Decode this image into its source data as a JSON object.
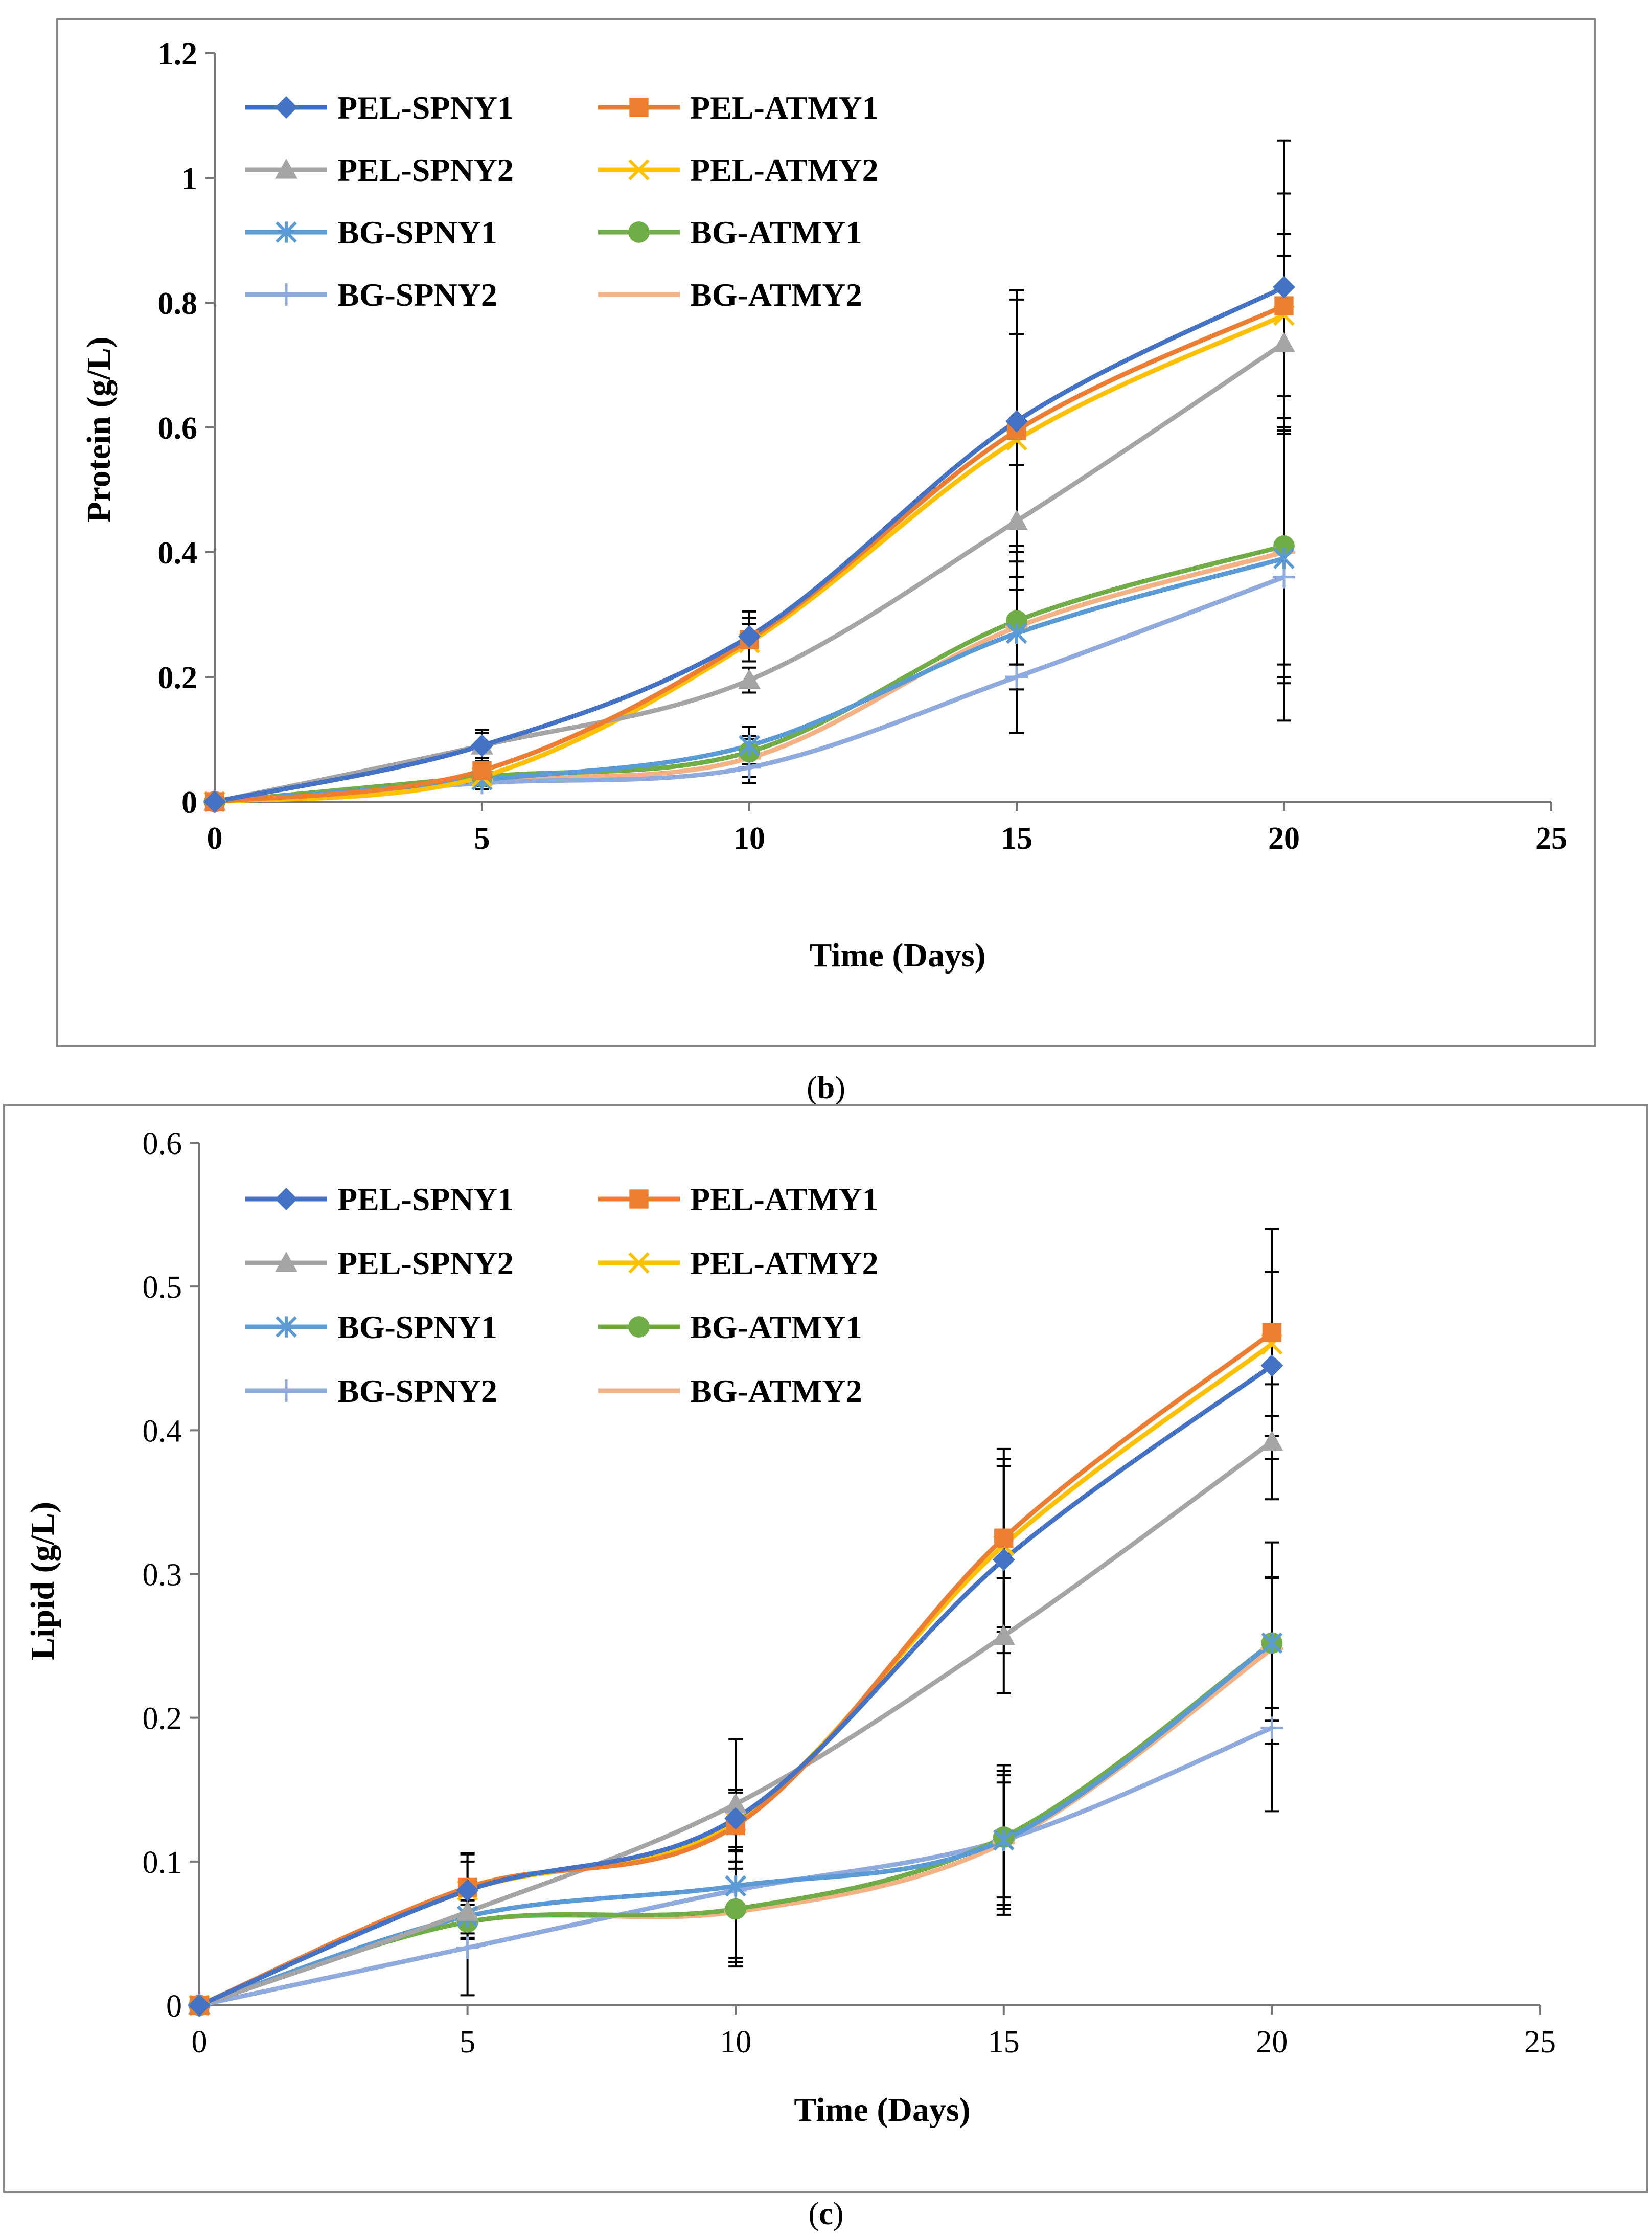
{
  "chart_data": [
    {
      "type": "line",
      "panel": "b",
      "caption_open": "(",
      "caption_letter": "b",
      "caption_close": ")",
      "title": "",
      "xlabel": "Time (Days)",
      "ylabel": "Protein (g/L)",
      "xlim": [
        0,
        25
      ],
      "ylim": [
        0,
        1.2
      ],
      "xticks": [
        0,
        5,
        10,
        15,
        20,
        25
      ],
      "yticks": [
        0,
        0.2,
        0.4,
        0.6,
        0.8,
        1.0,
        1.2
      ],
      "ytick_labels": [
        "0",
        "0.2",
        "0.4",
        "0.6",
        "0.8",
        "1",
        "1.2"
      ],
      "ytick_bold": true,
      "xtick_bold": true,
      "grid": false,
      "legend_position": "top-left",
      "x": [
        0,
        5,
        10,
        15,
        20
      ],
      "series": [
        {
          "name": "PEL-SPNY1",
          "color": "#4472c4",
          "marker": "diamond",
          "values": [
            0,
            0.09,
            0.265,
            0.61,
            0.825
          ],
          "errors": [
            0,
            0.02,
            0.04,
            0.21,
            0.235
          ]
        },
        {
          "name": "PEL-ATMY1",
          "color": "#ed7d31",
          "marker": "square",
          "values": [
            0,
            0.05,
            0.26,
            0.595,
            0.795
          ],
          "errors": [
            0,
            0.015,
            0.035,
            0.21,
            0.18
          ]
        },
        {
          "name": "PEL-SPNY2",
          "color": "#a5a5a5",
          "marker": "triangle",
          "values": [
            0,
            0.09,
            0.195,
            0.45,
            0.735
          ],
          "errors": [
            0,
            0.025,
            0.02,
            0.09,
            0.14
          ]
        },
        {
          "name": "PEL-ATMY2",
          "color": "#ffc000",
          "marker": "x",
          "values": [
            0,
            0.04,
            0.255,
            0.58,
            0.78
          ],
          "errors": [
            0,
            0.015,
            0.03,
            0.17,
            0.13
          ]
        },
        {
          "name": "BG-SPNY1",
          "color": "#5b9bd5",
          "marker": "star",
          "values": [
            0,
            0.035,
            0.09,
            0.27,
            0.39
          ],
          "errors": [
            0,
            0.01,
            0.03,
            0.09,
            0.2
          ]
        },
        {
          "name": "BG-ATMY1",
          "color": "#70ad47",
          "marker": "circle",
          "values": [
            0,
            0.04,
            0.08,
            0.29,
            0.41
          ],
          "errors": [
            0,
            0.01,
            0.025,
            0.07,
            0.19
          ]
        },
        {
          "name": "BG-SPNY2",
          "color": "#8faadc",
          "marker": "plus",
          "values": [
            0,
            0.03,
            0.055,
            0.2,
            0.36
          ],
          "errors": [
            0,
            0.01,
            0.025,
            0.09,
            0.23
          ]
        },
        {
          "name": "BG-ATMY2",
          "color": "#f4b183",
          "marker": "dash",
          "values": [
            0,
            0.035,
            0.07,
            0.28,
            0.4
          ],
          "errors": [
            0,
            0.01,
            0.03,
            0.06,
            0.2
          ]
        }
      ]
    },
    {
      "type": "line",
      "panel": "c",
      "caption_open": "(",
      "caption_letter": "c",
      "caption_close": ")",
      "title": "",
      "xlabel": "Time (Days)",
      "ylabel": "Lipid (g/L)",
      "xlim": [
        0,
        25
      ],
      "ylim": [
        0,
        0.6
      ],
      "xticks": [
        0,
        5,
        10,
        15,
        20,
        25
      ],
      "yticks": [
        0,
        0.1,
        0.2,
        0.3,
        0.4,
        0.5,
        0.6
      ],
      "ytick_labels": [
        "0",
        "0.1",
        "0.2",
        "0.3",
        "0.4",
        "0.5",
        "0.6"
      ],
      "ytick_bold": false,
      "xtick_bold": false,
      "grid": false,
      "legend_position": "top-left",
      "x": [
        0,
        5,
        10,
        15,
        20
      ],
      "series": [
        {
          "name": "PEL-SPNY1",
          "color": "#4472c4",
          "marker": "diamond",
          "values": [
            0,
            0.08,
            0.13,
            0.31,
            0.445
          ],
          "errors": [
            0,
            0.025,
            0.02,
            0.065,
            0.065
          ]
        },
        {
          "name": "PEL-ATMY1",
          "color": "#ed7d31",
          "marker": "square",
          "values": [
            0,
            0.082,
            0.125,
            0.325,
            0.468
          ],
          "errors": [
            0,
            0.024,
            0.025,
            0.062,
            0.072
          ]
        },
        {
          "name": "PEL-SPNY2",
          "color": "#a5a5a5",
          "marker": "triangle",
          "values": [
            0,
            0.065,
            0.14,
            0.257,
            0.392
          ],
          "errors": [
            0,
            0.015,
            0.045,
            0.04,
            0.04
          ]
        },
        {
          "name": "PEL-ATMY2",
          "color": "#ffc000",
          "marker": "x",
          "values": [
            0,
            0.08,
            0.128,
            0.32,
            0.46
          ],
          "errors": [
            0,
            0.02,
            0.02,
            0.06,
            0.05
          ]
        },
        {
          "name": "BG-SPNY1",
          "color": "#5b9bd5",
          "marker": "star",
          "values": [
            0,
            0.062,
            0.083,
            0.115,
            0.252
          ],
          "errors": [
            0,
            0.015,
            0.05,
            0.04,
            0.07
          ]
        },
        {
          "name": "BG-ATMY1",
          "color": "#70ad47",
          "marker": "circle",
          "values": [
            0,
            0.058,
            0.067,
            0.117,
            0.252
          ],
          "errors": [
            0,
            0.012,
            0.04,
            0.05,
            0.045
          ]
        },
        {
          "name": "BG-SPNY2",
          "color": "#8faadc",
          "marker": "plus",
          "values": [
            0,
            0.04,
            0.08,
            0.115,
            0.193
          ],
          "errors": [
            0,
            0.033,
            0.05,
            0.045,
            0.058
          ]
        },
        {
          "name": "BG-ATMY2",
          "color": "#f4b183",
          "marker": "dash",
          "values": [
            0,
            0.058,
            0.065,
            0.113,
            0.248
          ],
          "errors": [
            0,
            0.012,
            0.035,
            0.05,
            0.05
          ]
        }
      ]
    }
  ]
}
